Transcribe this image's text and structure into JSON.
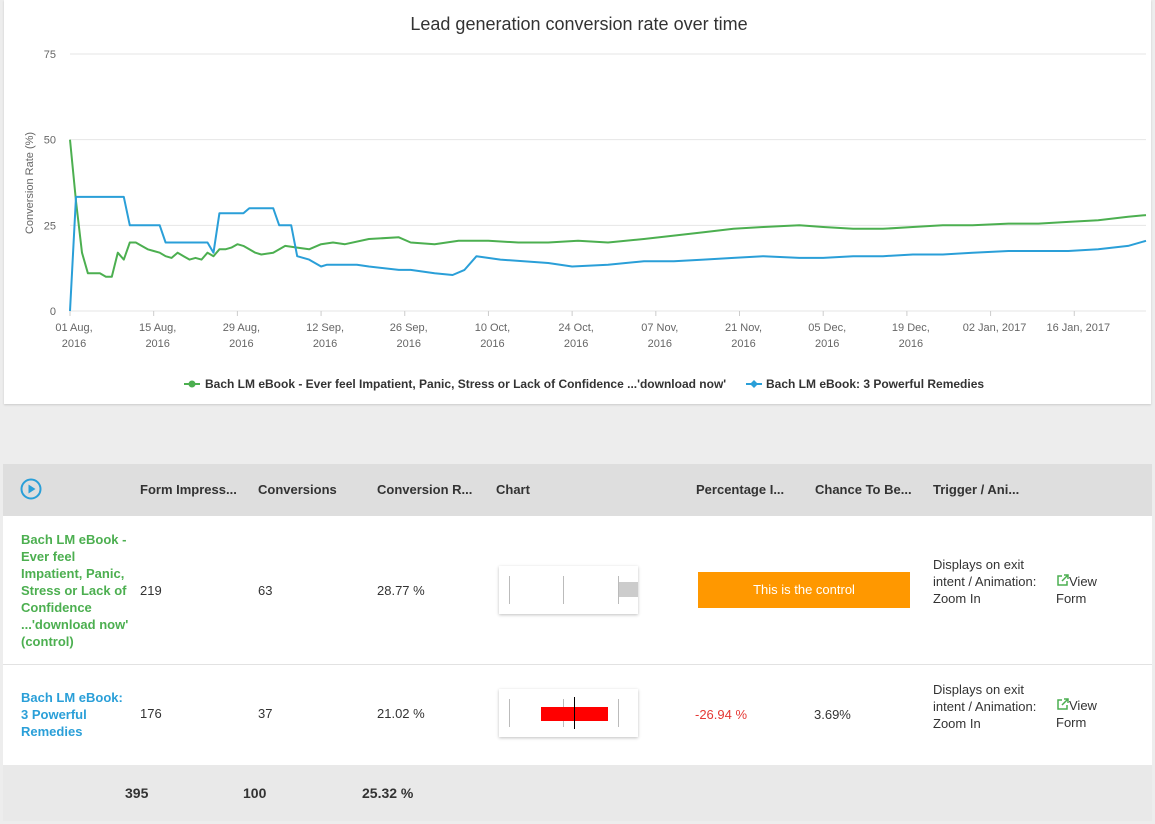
{
  "chart_data": {
    "type": "line",
    "title": "Lead generation conversion rate over time",
    "ylabel": "Conversion Rate (%)",
    "xlabel": "",
    "ylim": [
      0,
      75
    ],
    "y_ticks": [
      "0",
      "25",
      "50",
      "75"
    ],
    "grid": true,
    "legend_position": "bottom",
    "x_ticks": [
      [
        "01 Aug,",
        "2016"
      ],
      [
        "15 Aug,",
        "2016"
      ],
      [
        "29 Aug,",
        "2016"
      ],
      [
        "12 Sep,",
        "2016"
      ],
      [
        "26 Sep,",
        "2016"
      ],
      [
        "10 Oct,",
        "2016"
      ],
      [
        "24 Oct,",
        "2016"
      ],
      [
        "07 Nov,",
        "2016"
      ],
      [
        "21 Nov,",
        "2016"
      ],
      [
        "05 Dec,",
        "2016"
      ],
      [
        "19 Dec,",
        "2016"
      ],
      [
        "02 Jan, 2017"
      ],
      [
        "16 Jan, 2017"
      ]
    ],
    "x_start": "2016-08-01",
    "x_end": "2017-01-28",
    "series": [
      {
        "name": "Bach LM eBook - Ever feel Impatient, Panic, Stress or Lack of Confidence ...'download now'",
        "color": "#4caf50",
        "x": [
          "2016-08-01",
          "2016-08-02",
          "2016-08-03",
          "2016-08-04",
          "2016-08-06",
          "2016-08-07",
          "2016-08-08",
          "2016-08-09",
          "2016-08-10",
          "2016-08-11",
          "2016-08-12",
          "2016-08-13",
          "2016-08-14",
          "2016-08-15",
          "2016-08-16",
          "2016-08-17",
          "2016-08-18",
          "2016-08-19",
          "2016-08-20",
          "2016-08-21",
          "2016-08-22",
          "2016-08-23",
          "2016-08-24",
          "2016-08-25",
          "2016-08-26",
          "2016-08-27",
          "2016-08-28",
          "2016-08-29",
          "2016-08-30",
          "2016-08-31",
          "2016-09-01",
          "2016-09-02",
          "2016-09-04",
          "2016-09-06",
          "2016-09-08",
          "2016-09-10",
          "2016-09-12",
          "2016-09-14",
          "2016-09-16",
          "2016-09-20",
          "2016-09-25",
          "2016-09-27",
          "2016-10-01",
          "2016-10-05",
          "2016-10-10",
          "2016-10-15",
          "2016-10-20",
          "2016-10-25",
          "2016-10-30",
          "2016-11-05",
          "2016-11-10",
          "2016-11-15",
          "2016-11-20",
          "2016-11-25",
          "2016-12-01",
          "2016-12-05",
          "2016-12-10",
          "2016-12-15",
          "2016-12-20",
          "2016-12-25",
          "2016-12-30",
          "2017-01-05",
          "2017-01-10",
          "2017-01-15",
          "2017-01-20",
          "2017-01-25",
          "2017-01-28"
        ],
        "y": [
          50,
          32,
          17,
          11,
          11,
          10,
          10,
          17,
          15,
          20,
          20,
          19,
          18,
          17.5,
          17,
          16,
          15.5,
          17,
          16,
          15,
          15.5,
          15,
          17,
          16,
          18,
          18,
          18.5,
          19.5,
          19,
          18,
          17,
          16.5,
          17,
          19,
          18.5,
          18,
          19.5,
          20,
          19.5,
          21,
          21.5,
          20,
          19.5,
          20.5,
          20.5,
          20,
          20,
          20.5,
          20,
          21,
          22,
          23,
          24,
          24.5,
          25,
          24.5,
          24,
          24,
          24.5,
          25,
          25,
          25.5,
          25.5,
          26,
          26.5,
          27.5,
          28
        ]
      },
      {
        "name": "Bach LM eBook: 3 Powerful Remedies",
        "color": "#2a9fd8",
        "x": [
          "2016-08-01",
          "2016-08-02",
          "2016-08-10",
          "2016-08-11",
          "2016-08-16",
          "2016-08-17",
          "2016-08-24",
          "2016-08-25",
          "2016-08-26",
          "2016-08-30",
          "2016-08-31",
          "2016-09-04",
          "2016-09-05",
          "2016-09-07",
          "2016-09-08",
          "2016-09-10",
          "2016-09-12",
          "2016-09-13",
          "2016-09-16",
          "2016-09-18",
          "2016-09-20",
          "2016-09-25",
          "2016-09-27",
          "2016-10-01",
          "2016-10-04",
          "2016-10-06",
          "2016-10-08",
          "2016-10-12",
          "2016-10-20",
          "2016-10-24",
          "2016-10-30",
          "2016-11-05",
          "2016-11-10",
          "2016-11-15",
          "2016-11-20",
          "2016-11-25",
          "2016-12-01",
          "2016-12-05",
          "2016-12-10",
          "2016-12-15",
          "2016-12-20",
          "2016-12-25",
          "2016-12-30",
          "2017-01-05",
          "2017-01-10",
          "2017-01-15",
          "2017-01-20",
          "2017-01-25",
          "2017-01-28"
        ],
        "y": [
          0,
          33.3,
          33.3,
          25,
          25,
          20,
          20,
          17,
          28.5,
          28.5,
          30,
          30,
          25,
          25,
          16,
          15,
          13,
          13.5,
          13.5,
          13.5,
          13,
          12,
          12,
          11,
          10.5,
          12,
          16,
          15,
          14,
          13,
          13.5,
          14.5,
          14.5,
          15,
          15.5,
          16,
          15.5,
          15.5,
          16,
          16,
          16.5,
          16.5,
          17,
          17.5,
          17.5,
          17.5,
          18,
          19,
          20.5
        ]
      }
    ]
  },
  "table": {
    "header": {
      "form_impressions": "Form Impress...",
      "conversions": "Conversions",
      "conversion_rate": "Conversion R...",
      "chart": "Chart",
      "percentage": "Percentage I...",
      "chance": "Chance To Be...",
      "trigger": "Trigger / Ani..."
    },
    "rows": [
      {
        "name": "Bach LM eBook - Ever feel Impatient, Panic, Stress or Lack of Confidence ...'download now' (control)",
        "impressions": "219",
        "conversions": "63",
        "rate": "28.77 %",
        "control_label": "This is the control",
        "trigger": "Displays on exit intent / Animation: Zoom In",
        "view_form": "View Form",
        "bar_color": "#cccccc"
      },
      {
        "name": "Bach LM eBook: 3 Powerful Remedies",
        "impressions": "176",
        "conversions": "37",
        "rate": "21.02 %",
        "percentage": "-26.94 %",
        "chance": "3.69%",
        "trigger": "Displays on exit intent / Animation: Zoom In",
        "view_form": "View Form",
        "bar_color": "#ff0000"
      }
    ],
    "totals": {
      "impressions": "395",
      "conversions": "100",
      "rate": "25.32 %"
    }
  }
}
